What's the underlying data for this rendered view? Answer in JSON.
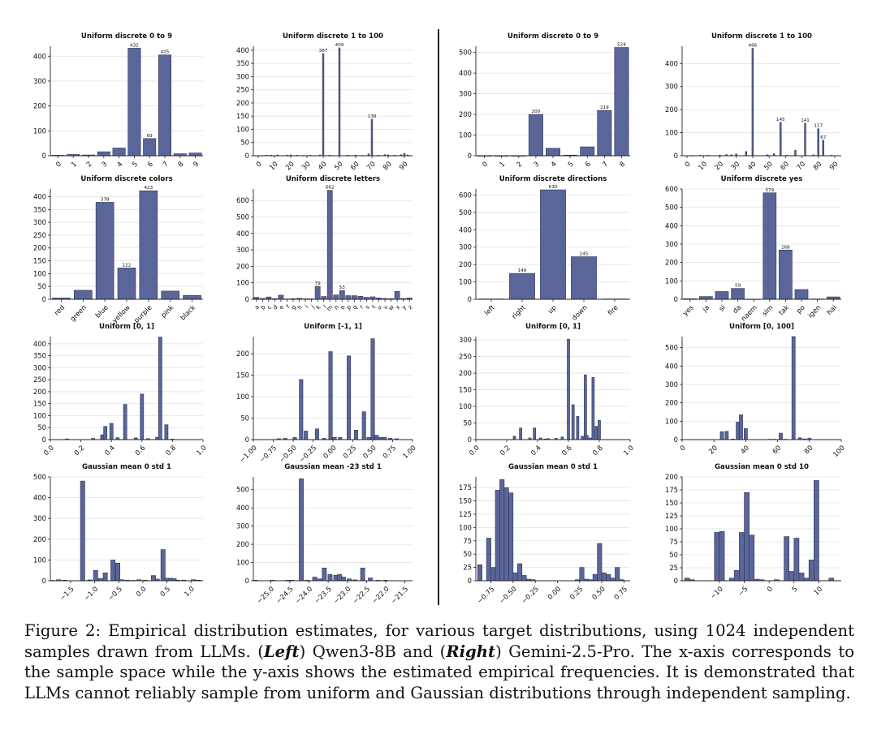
{
  "figure": {
    "caption": {
      "label": "Figure 2:",
      "text1": "Empirical distribution estimates, for various target distributions, using 1024 independent samples drawn from LLMs. (",
      "left": "Left",
      "text2": ") Qwen3-8B and (",
      "right": "Right",
      "text3": ") Gemini-2.5-Pro. The x-axis corresponds to the sample space while the y-axis shows the estimated empirical frequencies. It is demonstrated that LLMs cannot reliably sample from uniform and Gaussian distributions through independent sampling."
    },
    "colors": {
      "bar": "#5A6699",
      "edge": "#2E3555",
      "grid": "#e3e3e3",
      "axis": "#222222"
    }
  },
  "chart_data": [
    {
      "id": "q_d09",
      "panel": "left",
      "type": "bar",
      "title": "Uniform discrete 0 to 9",
      "categories": [
        "0",
        "1",
        "2",
        "3",
        "4",
        "5",
        "6",
        "7",
        "8",
        "9"
      ],
      "values": [
        2,
        5,
        3,
        16,
        31,
        432,
        69,
        405,
        8,
        11
      ],
      "value_labels": [
        "",
        "",
        "",
        "",
        "",
        "432",
        "69",
        "405",
        "",
        ""
      ],
      "ylim": [
        0,
        440
      ],
      "yticks": [
        0,
        100,
        200,
        300,
        400
      ],
      "grid": true
    },
    {
      "id": "q_d1100",
      "panel": "left",
      "type": "bar",
      "title": "Uniform discrete 1 to 100",
      "x": [
        2,
        5,
        8,
        12,
        18,
        20,
        24,
        28,
        32,
        38,
        40,
        44,
        50,
        55,
        60,
        64,
        68,
        70,
        74,
        78,
        80,
        84,
        88,
        90,
        92
      ],
      "values": [
        1,
        2,
        2,
        3,
        2,
        3,
        2,
        1,
        2,
        3,
        387,
        2,
        409,
        2,
        2,
        1,
        7,
        138,
        2,
        4,
        3,
        2,
        4,
        9,
        3
      ],
      "value_labels": {
        "40": "387",
        "50": "409",
        "70": "138"
      },
      "xlim": [
        -3,
        95
      ],
      "xticks": [
        0,
        10,
        20,
        30,
        40,
        50,
        60,
        70,
        80,
        90
      ],
      "ylim": [
        0,
        415
      ],
      "yticks": [
        0,
        50,
        100,
        150,
        200,
        250,
        300,
        350,
        400
      ],
      "grid": true
    },
    {
      "id": "g_d09",
      "panel": "right",
      "type": "bar",
      "title": "Uniform discrete 0 to 9",
      "categories": [
        "0",
        "1",
        "2",
        "3",
        "4",
        "5",
        "6",
        "7",
        "8"
      ],
      "values": [
        0,
        0,
        0,
        200,
        36,
        3,
        43,
        219,
        524
      ],
      "value_labels": [
        "",
        "",
        "",
        "200",
        "",
        "",
        "",
        "219",
        "524"
      ],
      "ylim": [
        0,
        530
      ],
      "yticks": [
        0,
        100,
        200,
        300,
        400,
        500
      ],
      "grid": true
    },
    {
      "id": "g_d1100",
      "panel": "right",
      "type": "bar",
      "title": "Uniform discrete 1 to 100",
      "x": [
        3,
        8,
        13,
        20,
        24,
        27,
        30,
        36,
        40,
        49,
        53,
        57,
        61,
        66,
        72,
        77,
        80,
        83,
        88
      ],
      "values": [
        1,
        2,
        2,
        3,
        5,
        4,
        8,
        18,
        466,
        4,
        9,
        145,
        2,
        24,
        141,
        4,
        117,
        67,
        2
      ],
      "value_labels": {
        "40": "466",
        "57": "145",
        "72": "141",
        "80": "117",
        "83": "67"
      },
      "xlim": [
        -3,
        94
      ],
      "xticks": [
        0,
        10,
        20,
        30,
        40,
        50,
        60,
        70,
        80,
        90
      ],
      "ylim": [
        0,
        475
      ],
      "yticks": [
        0,
        100,
        200,
        300,
        400
      ],
      "grid": true
    },
    {
      "id": "q_colors",
      "panel": "left",
      "type": "bar",
      "title": "Uniform discrete colors",
      "categories": [
        "red",
        "green",
        "blue",
        "yellow",
        "purple",
        "pink",
        "black"
      ],
      "values": [
        5,
        35,
        378,
        122,
        423,
        32,
        15
      ],
      "value_labels": [
        "",
        "",
        "378",
        "122",
        "423",
        "",
        ""
      ],
      "ylim": [
        0,
        430
      ],
      "yticks": [
        0,
        50,
        100,
        150,
        200,
        250,
        300,
        350,
        400
      ],
      "grid": true
    },
    {
      "id": "q_letters",
      "panel": "left",
      "type": "bar",
      "title": "Uniform discrete letters",
      "categories": [
        "a",
        "b",
        "c",
        "d",
        "e",
        "f",
        "g",
        "h",
        "i",
        "j",
        "k",
        "l",
        "m",
        "n",
        "o",
        "p",
        "q",
        "r",
        "s",
        "t",
        "u",
        "v",
        "w",
        "x",
        "y",
        "z"
      ],
      "values": [
        12,
        5,
        14,
        4,
        25,
        2,
        4,
        6,
        3,
        3,
        79,
        17,
        662,
        26,
        53,
        22,
        22,
        18,
        12,
        15,
        8,
        5,
        4,
        48,
        5,
        8
      ],
      "value_labels": [
        "",
        "",
        "",
        "",
        "",
        "",
        "",
        "",
        "",
        "",
        "79",
        "",
        "662",
        "",
        "53",
        "",
        "",
        "",
        "",
        "",
        "",
        "",
        "",
        "",
        "",
        ""
      ],
      "ylim": [
        0,
        670
      ],
      "yticks": [
        0,
        100,
        200,
        300,
        400,
        500,
        600
      ],
      "grid": true
    },
    {
      "id": "g_directions",
      "panel": "right",
      "type": "bar",
      "title": "Uniform discrete directions",
      "categories": [
        "left",
        "right",
        "up",
        "down",
        "fire"
      ],
      "values": [
        2,
        149,
        630,
        245,
        2
      ],
      "value_labels": [
        "",
        "149",
        "630",
        "245",
        ""
      ],
      "ylim": [
        0,
        635
      ],
      "yticks": [
        0,
        100,
        200,
        300,
        400,
        500,
        600
      ],
      "grid": true
    },
    {
      "id": "g_yes",
      "panel": "right",
      "type": "bar",
      "title": "Uniform discrete yes",
      "categories": [
        "yes",
        "ja",
        "si",
        "da",
        "naem",
        "sim",
        "tak",
        "po",
        "igen",
        "hai"
      ],
      "values": [
        3,
        15,
        42,
        59,
        1,
        579,
        268,
        53,
        2,
        13
      ],
      "value_labels": [
        "",
        "",
        "",
        "59",
        "",
        "579",
        "268",
        "",
        "",
        ""
      ],
      "ylim": [
        0,
        600
      ],
      "yticks": [
        0,
        100,
        200,
        300,
        400,
        500,
        600
      ],
      "grid": true
    },
    {
      "id": "q_u01",
      "panel": "left",
      "type": "histogram",
      "title": "Uniform [0, 1]",
      "x": [
        0.11,
        0.28,
        0.34,
        0.36,
        0.4,
        0.44,
        0.49,
        0.56,
        0.6,
        0.64,
        0.7,
        0.72,
        0.76,
        0.8
      ],
      "values": [
        3,
        5,
        20,
        55,
        68,
        8,
        147,
        7,
        190,
        4,
        10,
        428,
        62,
        2
      ],
      "bin_width": 0.022,
      "xlim": [
        0,
        1
      ],
      "xticks": [
        0.0,
        0.2,
        0.4,
        0.6,
        0.8,
        1.0
      ],
      "ylim": [
        0,
        430
      ],
      "yticks": [
        0,
        50,
        100,
        150,
        200,
        250,
        300,
        350,
        400
      ],
      "grid": true
    },
    {
      "id": "q_um11",
      "panel": "left",
      "type": "histogram",
      "title": "Uniform [-1, 1]",
      "x": [
        -0.68,
        -0.6,
        -0.48,
        -0.4,
        -0.34,
        -0.2,
        -0.11,
        -0.03,
        0.02,
        0.09,
        0.2,
        0.29,
        0.39,
        0.45,
        0.5,
        0.55,
        0.6,
        0.65,
        0.72,
        0.8
      ],
      "values": [
        2,
        3,
        5,
        140,
        20,
        25,
        3,
        205,
        5,
        5,
        195,
        22,
        65,
        5,
        235,
        10,
        5,
        5,
        3,
        2
      ],
      "bin_width": 0.045,
      "xlim": [
        -1,
        1
      ],
      "xticks": [
        -1.0,
        -0.75,
        -0.5,
        -0.25,
        0.0,
        0.25,
        0.5,
        0.75,
        1.0
      ],
      "ylim": [
        0,
        240
      ],
      "yticks": [
        0,
        50,
        100,
        150,
        200
      ],
      "grid": true
    },
    {
      "id": "g_u01",
      "panel": "right",
      "type": "histogram",
      "title": "Uniform [0, 1]",
      "x": [
        0.25,
        0.29,
        0.35,
        0.38,
        0.42,
        0.45,
        0.47,
        0.52,
        0.56,
        0.6,
        0.63,
        0.66,
        0.69,
        0.71,
        0.72,
        0.74,
        0.76,
        0.78,
        0.8
      ],
      "values": [
        10,
        35,
        5,
        35,
        5,
        2,
        3,
        4,
        8,
        302,
        105,
        70,
        10,
        195,
        13,
        5,
        187,
        40,
        58
      ],
      "bin_width": 0.016,
      "xlim": [
        0,
        1
      ],
      "xticks": [
        0.0,
        0.2,
        0.4,
        0.6,
        0.8,
        1.0
      ],
      "ylim": [
        0,
        310
      ],
      "yticks": [
        0,
        50,
        100,
        150,
        200,
        250,
        300
      ],
      "grid": true
    },
    {
      "id": "g_u0100",
      "panel": "right",
      "type": "histogram",
      "title": "Uniform [0, 100]",
      "x": [
        25,
        28,
        32,
        35,
        37,
        40,
        55,
        58,
        62,
        65,
        70,
        74,
        77,
        80
      ],
      "values": [
        43,
        45,
        3,
        95,
        135,
        60,
        2,
        2,
        35,
        2,
        560,
        10,
        4,
        8
      ],
      "bin_width": 2.1,
      "xlim": [
        0,
        100
      ],
      "xticks": [
        0,
        20,
        40,
        60,
        80,
        100
      ],
      "ylim": [
        0,
        560
      ],
      "yticks": [
        0,
        100,
        200,
        300,
        400,
        500
      ],
      "grid": true
    },
    {
      "id": "q_g01",
      "panel": "left",
      "type": "histogram",
      "title": "Gaussian mean 0 std 1",
      "x": [
        -1.88,
        -1.75,
        -1.62,
        -1.25,
        -1.1,
        -0.98,
        -0.88,
        -0.78,
        -0.62,
        -0.52,
        -0.44,
        -0.32,
        -0.2,
        -0.08,
        0.05,
        0.22,
        0.3,
        0.42,
        0.5,
        0.58,
        0.65,
        0.72,
        0.85,
        1.05,
        1.15
      ],
      "values": [
        2,
        5,
        3,
        480,
        4,
        50,
        10,
        38,
        100,
        85,
        5,
        3,
        2,
        5,
        3,
        25,
        8,
        150,
        12,
        12,
        10,
        3,
        3,
        5,
        3
      ],
      "bin_width": 0.09,
      "xlim": [
        -1.92,
        1.25
      ],
      "xticks": [
        -1.5,
        -1.0,
        -0.5,
        0.0,
        0.5,
        1.0
      ],
      "ylim": [
        0,
        500
      ],
      "yticks": [
        0,
        100,
        200,
        300,
        400,
        500
      ],
      "grid": true
    },
    {
      "id": "q_gm23",
      "panel": "left",
      "type": "histogram",
      "title": "Gaussian mean -23 std 1",
      "x": [
        -25.4,
        -24.95,
        -24.55,
        -24.45,
        -24.2,
        -24.05,
        -23.85,
        -23.72,
        -23.6,
        -23.45,
        -23.3,
        -23.2,
        -23.1,
        -22.95,
        -22.8,
        -22.6,
        -22.4,
        -22.2,
        -22.0
      ],
      "values": [
        3,
        3,
        3,
        3,
        560,
        3,
        20,
        10,
        70,
        35,
        30,
        35,
        20,
        10,
        5,
        70,
        15,
        3,
        3
      ],
      "bin_width": 0.11,
      "xlim": [
        -25.45,
        -21.3
      ],
      "xticks": [
        -25.0,
        -24.5,
        -24.0,
        -23.5,
        -23.0,
        -22.5,
        -22.0,
        -21.5
      ],
      "ylim": [
        0,
        570
      ],
      "yticks": [
        0,
        100,
        200,
        300,
        400,
        500
      ],
      "grid": true
    },
    {
      "id": "g_g01",
      "panel": "right",
      "type": "histogram",
      "title": "Gaussian mean 0 std 1",
      "x": [
        -0.875,
        -0.825,
        -0.775,
        -0.725,
        -0.675,
        -0.625,
        -0.575,
        -0.525,
        -0.475,
        -0.425,
        -0.375,
        -0.325,
        -0.275,
        -0.225,
        -0.175,
        -0.125,
        -0.075,
        -0.025,
        0.025,
        0.075,
        0.125,
        0.175,
        0.225,
        0.275,
        0.325,
        0.375,
        0.425,
        0.475,
        0.525,
        0.575,
        0.625,
        0.675,
        0.725,
        0.775
      ],
      "values": [
        30,
        0,
        80,
        25,
        170,
        190,
        175,
        165,
        15,
        32,
        10,
        3,
        2,
        0,
        0,
        0,
        0,
        0,
        0,
        0,
        0,
        0,
        2,
        25,
        3,
        2,
        12,
        70,
        15,
        12,
        5,
        25,
        2,
        0
      ],
      "bin_width": 0.05,
      "xlim": [
        -0.92,
        0.82
      ],
      "xticks": [
        -0.75,
        -0.5,
        -0.25,
        0.0,
        0.25,
        0.5,
        0.75
      ],
      "ylim": [
        0,
        195
      ],
      "yticks": [
        0,
        25,
        50,
        75,
        100,
        125,
        150,
        175
      ],
      "grid": true
    },
    {
      "id": "g_g010",
      "panel": "right",
      "type": "histogram",
      "title": "Gaussian mean 0 std 10",
      "x": [
        -16.5,
        -15.5,
        -14.5,
        -13.5,
        -12.5,
        -11.5,
        -10.5,
        -9.5,
        -8.5,
        -7.5,
        -6.5,
        -5.5,
        -4.5,
        -3.5,
        -2.5,
        -1.5,
        -0.5,
        0.5,
        1.5,
        2.5,
        3.5,
        4.5,
        5.5,
        6.5,
        7.5,
        8.5,
        9.5,
        10.5,
        11.5,
        12.5
      ],
      "values": [
        5,
        2,
        0,
        0,
        0,
        0,
        93,
        95,
        0,
        5,
        20,
        93,
        170,
        88,
        3,
        2,
        0,
        0,
        2,
        0,
        85,
        18,
        82,
        15,
        5,
        40,
        193,
        0,
        0,
        5
      ],
      "bin_width": 1,
      "xlim": [
        -17.5,
        14.5
      ],
      "xticks": [
        -10,
        -5,
        0,
        5,
        10
      ],
      "ylim": [
        0,
        200
      ],
      "yticks": [
        0,
        25,
        50,
        75,
        100,
        125,
        150,
        175,
        200
      ],
      "grid": true
    }
  ]
}
